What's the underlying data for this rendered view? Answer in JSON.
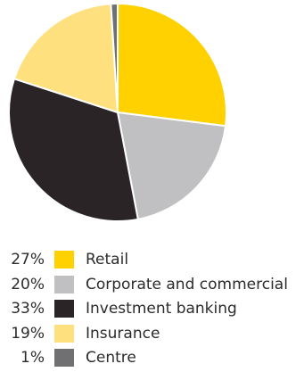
{
  "chart_data": {
    "type": "pie",
    "title": "",
    "start_angle_deg": 0,
    "direction": "clockwise",
    "slices": [
      {
        "label": "Retail",
        "percent_label": "27%",
        "value": 27,
        "color": "#ffd100"
      },
      {
        "label": "Corporate and commercial",
        "percent_label": "20%",
        "value": 20,
        "color": "#c0c0c2"
      },
      {
        "label": "Investment banking",
        "percent_label": "33%",
        "value": 33,
        "color": "#2a2426"
      },
      {
        "label": "Insurance",
        "percent_label": "19%",
        "value": 19,
        "color": "#ffe07f"
      },
      {
        "label": "Centre",
        "percent_label": "1%",
        "value": 1,
        "color": "#707072"
      }
    ]
  }
}
